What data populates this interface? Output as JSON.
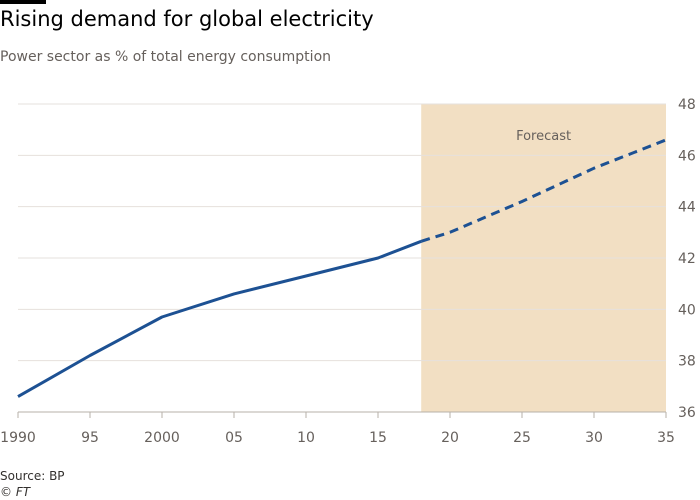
{
  "header": {
    "title": "Rising demand for global electricity",
    "subtitle": "Power sector as % of total energy consumption"
  },
  "footer": {
    "source": "Source: BP",
    "copyright": "© FT"
  },
  "colors": {
    "line": "#1d5193",
    "forecast_band": "#f2dfc3",
    "grid": "#e6e1dc",
    "axis": "#b7b0aa",
    "text": "#66605c"
  },
  "chart_data": {
    "type": "line",
    "title": "Rising demand for global electricity",
    "subtitle": "Power sector as % of total energy consumption",
    "xlabel": "",
    "ylabel": "",
    "xlim": [
      1990,
      2035
    ],
    "ylim": [
      36,
      48
    ],
    "x_ticks": [
      1990,
      1995,
      2000,
      2005,
      2010,
      2015,
      2020,
      2025,
      2030,
      2035
    ],
    "x_tick_labels": [
      "1990",
      "95",
      "2000",
      "05",
      "10",
      "15",
      "20",
      "25",
      "30",
      "35"
    ],
    "y_ticks": [
      36,
      38,
      40,
      42,
      44,
      46,
      48
    ],
    "y_axis_position": "right",
    "grid": "horizontal",
    "series": [
      {
        "style": "solid",
        "x": [
          1990,
          1995,
          2000,
          2005,
          2010,
          2015,
          2018
        ],
        "values": [
          36.6,
          38.2,
          39.7,
          40.6,
          41.3,
          42.0,
          42.65
        ]
      },
      {
        "style": "dashed",
        "x": [
          2018,
          2020,
          2025,
          2030,
          2035
        ],
        "values": [
          42.65,
          43.0,
          44.2,
          45.5,
          46.6
        ]
      }
    ],
    "forecast_region": {
      "label": "Forecast",
      "x_start": 2018,
      "x_end": 2035
    }
  }
}
